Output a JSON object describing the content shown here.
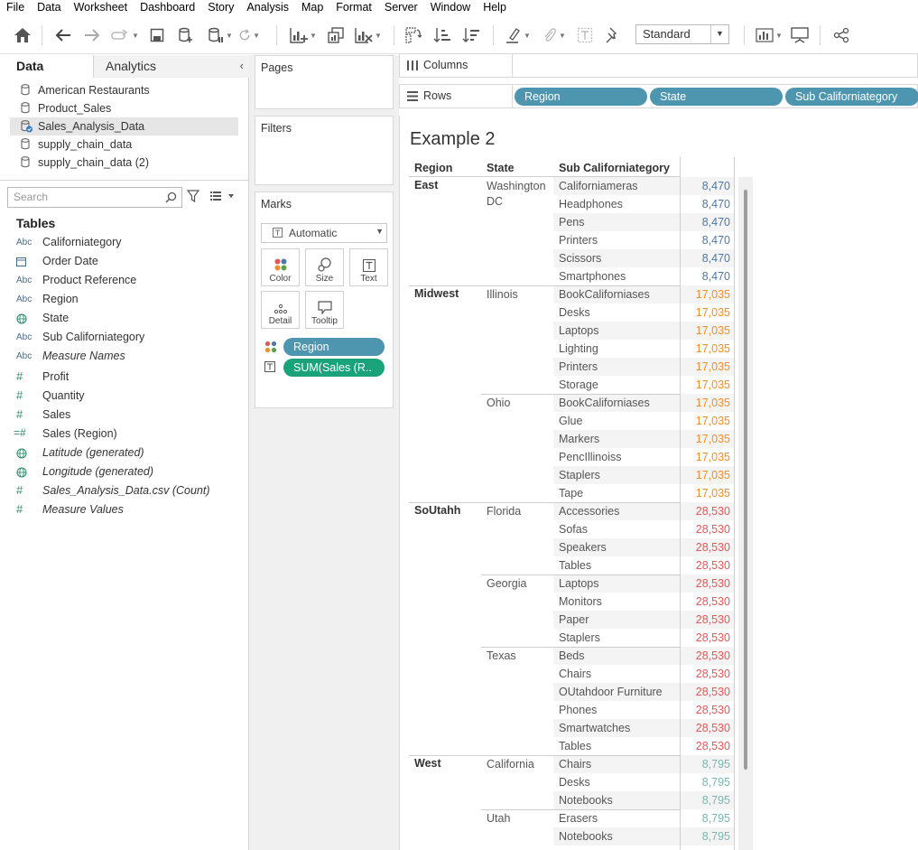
{
  "menu": [
    "File",
    "Data",
    "Worksheet",
    "Dashboard",
    "Story",
    "Analysis",
    "Map",
    "Format",
    "Server",
    "Window",
    "Help"
  ],
  "toolbar": {
    "fit_select": "Standard"
  },
  "data_pane": {
    "tab_data": "Data",
    "tab_analytics": "Analytics",
    "datasources": [
      {
        "name": "American Restaurants",
        "selected": false
      },
      {
        "name": "Product_Sales",
        "selected": false
      },
      {
        "name": "Sales_Analysis_Data",
        "selected": true
      },
      {
        "name": "supply_chain_data",
        "selected": false
      },
      {
        "name": "supply_chain_data (2)",
        "selected": false
      }
    ],
    "search_placeholder": "Search",
    "tables_heading": "Tables",
    "fields": [
      {
        "name": "Californiategory",
        "type": "abc",
        "italic": false
      },
      {
        "name": "Order Date",
        "type": "date",
        "italic": false
      },
      {
        "name": "Product Reference",
        "type": "abc",
        "italic": false
      },
      {
        "name": "Region",
        "type": "abc",
        "italic": false
      },
      {
        "name": "State",
        "type": "geo",
        "italic": false
      },
      {
        "name": "Sub Californiategory",
        "type": "abc",
        "italic": false
      },
      {
        "name": "Measure Names",
        "type": "abc",
        "italic": true
      },
      {
        "name": "Profit",
        "type": "num",
        "italic": false
      },
      {
        "name": "Quantity",
        "type": "num",
        "italic": false
      },
      {
        "name": "Sales",
        "type": "num",
        "italic": false
      },
      {
        "name": "Sales (Region)",
        "type": "numcalc",
        "italic": false
      },
      {
        "name": "Latitude (generated)",
        "type": "geo",
        "italic": true
      },
      {
        "name": "Longitude (generated)",
        "type": "geo",
        "italic": true
      },
      {
        "name": "Sales_Analysis_Data.csv (Count)",
        "type": "num",
        "italic": true
      },
      {
        "name": "Measure Values",
        "type": "num",
        "italic": true
      }
    ]
  },
  "shelves": {
    "pages": "Pages",
    "filters": "Filters",
    "marks": "Marks",
    "mark_type": "Automatic",
    "mark_buttons": [
      "Color",
      "Size",
      "Text",
      "Detail",
      "Tooltip"
    ],
    "mark_pills": [
      {
        "label": "Region",
        "color": "#4e95b0"
      },
      {
        "label": "SUM(Sales (R..",
        "color": "#1aa37a"
      }
    ],
    "columns_label": "Columns",
    "rows_label": "Rows",
    "row_pills": [
      "Region",
      "State",
      "Sub Californiategory"
    ]
  },
  "sheet": {
    "title": "Example 2",
    "headers": [
      "Region",
      "State",
      "Sub Californiategory"
    ],
    "colors": {
      "East": "#4e79a7",
      "Midwest": "#f28e2b",
      "SoUtahh": "#e15759",
      "West": "#76b7b2"
    },
    "rows": [
      {
        "region": "East",
        "state": "Washington DC",
        "sub": "Californiameras",
        "value": "8,470"
      },
      {
        "region": "East",
        "state": "",
        "sub": "Headphones",
        "value": "8,470"
      },
      {
        "region": "East",
        "state": "",
        "sub": "Pens",
        "value": "8,470"
      },
      {
        "region": "East",
        "state": "",
        "sub": "Printers",
        "value": "8,470"
      },
      {
        "region": "East",
        "state": "",
        "sub": "Scissors",
        "value": "8,470"
      },
      {
        "region": "East",
        "state": "",
        "sub": "Smartphones",
        "value": "8,470"
      },
      {
        "region": "Midwest",
        "state": "Illinois",
        "sub": "BookCaliforniases",
        "value": "17,035"
      },
      {
        "region": "Midwest",
        "state": "",
        "sub": "Desks",
        "value": "17,035"
      },
      {
        "region": "Midwest",
        "state": "",
        "sub": "Laptops",
        "value": "17,035"
      },
      {
        "region": "Midwest",
        "state": "",
        "sub": "Lighting",
        "value": "17,035"
      },
      {
        "region": "Midwest",
        "state": "",
        "sub": "Printers",
        "value": "17,035"
      },
      {
        "region": "Midwest",
        "state": "",
        "sub": "Storage",
        "value": "17,035"
      },
      {
        "region": "Midwest",
        "state": "Ohio",
        "sub": "BookCaliforniases",
        "value": "17,035"
      },
      {
        "region": "Midwest",
        "state": "",
        "sub": "Glue",
        "value": "17,035"
      },
      {
        "region": "Midwest",
        "state": "",
        "sub": "Markers",
        "value": "17,035"
      },
      {
        "region": "Midwest",
        "state": "",
        "sub": "PencIllinoiss",
        "value": "17,035"
      },
      {
        "region": "Midwest",
        "state": "",
        "sub": "Staplers",
        "value": "17,035"
      },
      {
        "region": "Midwest",
        "state": "",
        "sub": "Tape",
        "value": "17,035"
      },
      {
        "region": "SoUtahh",
        "state": "Florida",
        "sub": "Accessories",
        "value": "28,530"
      },
      {
        "region": "SoUtahh",
        "state": "",
        "sub": "Sofas",
        "value": "28,530"
      },
      {
        "region": "SoUtahh",
        "state": "",
        "sub": "Speakers",
        "value": "28,530"
      },
      {
        "region": "SoUtahh",
        "state": "",
        "sub": "Tables",
        "value": "28,530"
      },
      {
        "region": "SoUtahh",
        "state": "Georgia",
        "sub": "Laptops",
        "value": "28,530"
      },
      {
        "region": "SoUtahh",
        "state": "",
        "sub": "Monitors",
        "value": "28,530"
      },
      {
        "region": "SoUtahh",
        "state": "",
        "sub": "Paper",
        "value": "28,530"
      },
      {
        "region": "SoUtahh",
        "state": "",
        "sub": "Staplers",
        "value": "28,530"
      },
      {
        "region": "SoUtahh",
        "state": "Texas",
        "sub": "Beds",
        "value": "28,530"
      },
      {
        "region": "SoUtahh",
        "state": "",
        "sub": "Chairs",
        "value": "28,530"
      },
      {
        "region": "SoUtahh",
        "state": "",
        "sub": "OUtahdoor Furniture",
        "value": "28,530"
      },
      {
        "region": "SoUtahh",
        "state": "",
        "sub": "Phones",
        "value": "28,530"
      },
      {
        "region": "SoUtahh",
        "state": "",
        "sub": "Smartwatches",
        "value": "28,530"
      },
      {
        "region": "SoUtahh",
        "state": "",
        "sub": "Tables",
        "value": "28,530"
      },
      {
        "region": "West",
        "state": "California",
        "sub": "Chairs",
        "value": "8,795"
      },
      {
        "region": "West",
        "state": "",
        "sub": "Desks",
        "value": "8,795"
      },
      {
        "region": "West",
        "state": "",
        "sub": "Notebooks",
        "value": "8,795"
      },
      {
        "region": "West",
        "state": "Utah",
        "sub": "Erasers",
        "value": "8,795"
      },
      {
        "region": "West",
        "state": "",
        "sub": "Notebooks",
        "value": "8,795"
      }
    ]
  }
}
